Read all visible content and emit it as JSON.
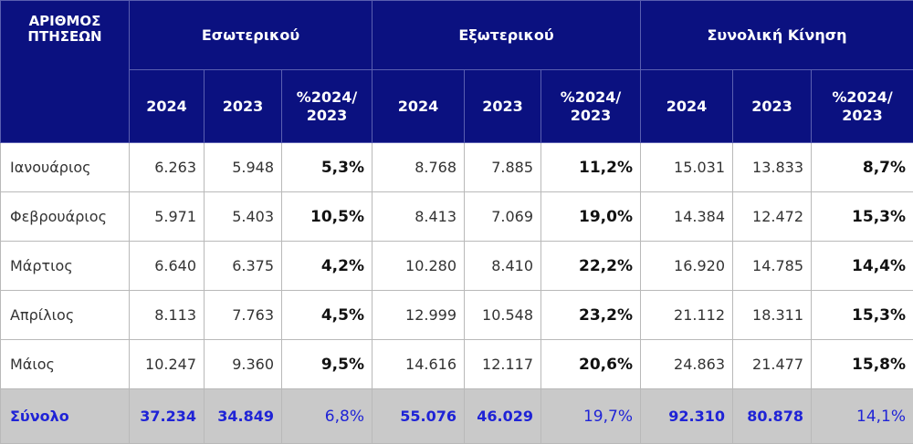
{
  "header": {
    "corner_line1": "ΑΡΙΘΜΟΣ",
    "corner_line2": "ΠΤΗΣΕΩΝ",
    "groups": [
      "Εσωτερικού",
      "Εξωτερικού",
      "Συνολική Κίνηση"
    ],
    "sub": [
      "2024",
      "2023",
      "%2024/ 2023"
    ]
  },
  "rows": [
    {
      "month": "Ιανουάριος",
      "cells": [
        "6.263",
        "5.948",
        "5,3%",
        "8.768",
        "7.885",
        "11,2%",
        "15.031",
        "13.833",
        "8,7%"
      ]
    },
    {
      "month": "Φεβρουάριος",
      "cells": [
        "5.971",
        "5.403",
        "10,5%",
        "8.413",
        "7.069",
        "19,0%",
        "14.384",
        "12.472",
        "15,3%"
      ]
    },
    {
      "month": "Μάρτιος",
      "cells": [
        "6.640",
        "6.375",
        "4,2%",
        "10.280",
        "8.410",
        "22,2%",
        "16.920",
        "14.785",
        "14,4%"
      ]
    },
    {
      "month": "Απρίλιος",
      "cells": [
        "8.113",
        "7.763",
        "4,5%",
        "12.999",
        "10.548",
        "23,2%",
        "21.112",
        "18.311",
        "15,3%"
      ]
    },
    {
      "month": "Μάιος",
      "cells": [
        "10.247",
        "9.360",
        "9,5%",
        "14.616",
        "12.117",
        "20,6%",
        "24.863",
        "21.477",
        "15,8%"
      ]
    }
  ],
  "total": {
    "label": "Σύνολο",
    "cells": [
      "37.234",
      "34.849",
      "6,8%",
      "55.076",
      "46.029",
      "19,7%",
      "92.310",
      "80.878",
      "14,1%"
    ]
  }
}
